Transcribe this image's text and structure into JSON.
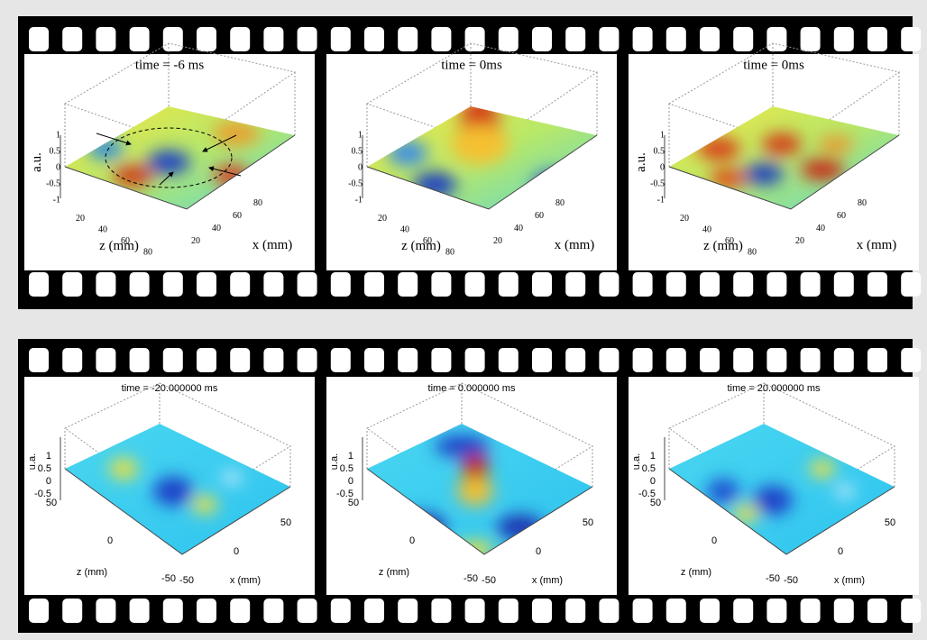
{
  "top_row": [
    {
      "title": "time = -6 ms",
      "value_label": "a.u.",
      "z_label": "z (mm)",
      "x_label": "x (mm)",
      "value_ticks": [
        "1",
        "0.5",
        "0",
        "-0.5",
        "-1"
      ],
      "z_ticks": [
        "20",
        "40",
        "60",
        "80"
      ],
      "x_ticks": [
        "20",
        "40",
        "60",
        "80"
      ]
    },
    {
      "title": "time = 0ms",
      "z_label": "z (mm)",
      "x_label": "x (mm)",
      "value_ticks": [
        "1",
        "0.5",
        "0",
        "-0.5",
        "-1"
      ],
      "z_ticks": [
        "20",
        "40",
        "60",
        "80"
      ],
      "x_ticks": [
        "20",
        "40",
        "60",
        "80"
      ]
    },
    {
      "title": "time = 0ms",
      "value_label": "a.u.",
      "z_label": "z (mm)",
      "x_label": "x (mm)",
      "value_ticks": [
        "1",
        "0.5",
        "0",
        "-0.5",
        "-1"
      ],
      "z_ticks": [
        "20",
        "40",
        "60",
        "80"
      ],
      "x_ticks": [
        "20",
        "40",
        "60",
        "80"
      ]
    }
  ],
  "bottom_row": [
    {
      "title": "time = -20.000000 ms",
      "value_label": "u.a.",
      "z_label": "z (mm)",
      "x_label": "x (mm)",
      "value_ticks": [
        "1",
        "0.5",
        "0",
        "-0.5"
      ],
      "z_ticks": [
        "50",
        "0",
        "-50"
      ],
      "x_ticks": [
        "-50",
        "0",
        "50"
      ]
    },
    {
      "title": "time = 0.000000 ms",
      "value_label": "u.a.",
      "z_label": "z (mm)",
      "x_label": "x (mm)",
      "value_ticks": [
        "1",
        "0.5",
        "0",
        "-0.5"
      ],
      "z_ticks": [
        "50",
        "0",
        "-50"
      ],
      "x_ticks": [
        "-50",
        "0",
        "50"
      ]
    },
    {
      "title": "time = 20.000000 ms",
      "value_label": "u.a.",
      "z_label": "z (mm)",
      "x_label": "x (mm)",
      "value_ticks": [
        "1",
        "0.5",
        "0",
        "-0.5"
      ],
      "z_ticks": [
        "50",
        "0",
        "-50"
      ],
      "x_ticks": [
        "-50",
        "0",
        "50"
      ]
    }
  ]
}
